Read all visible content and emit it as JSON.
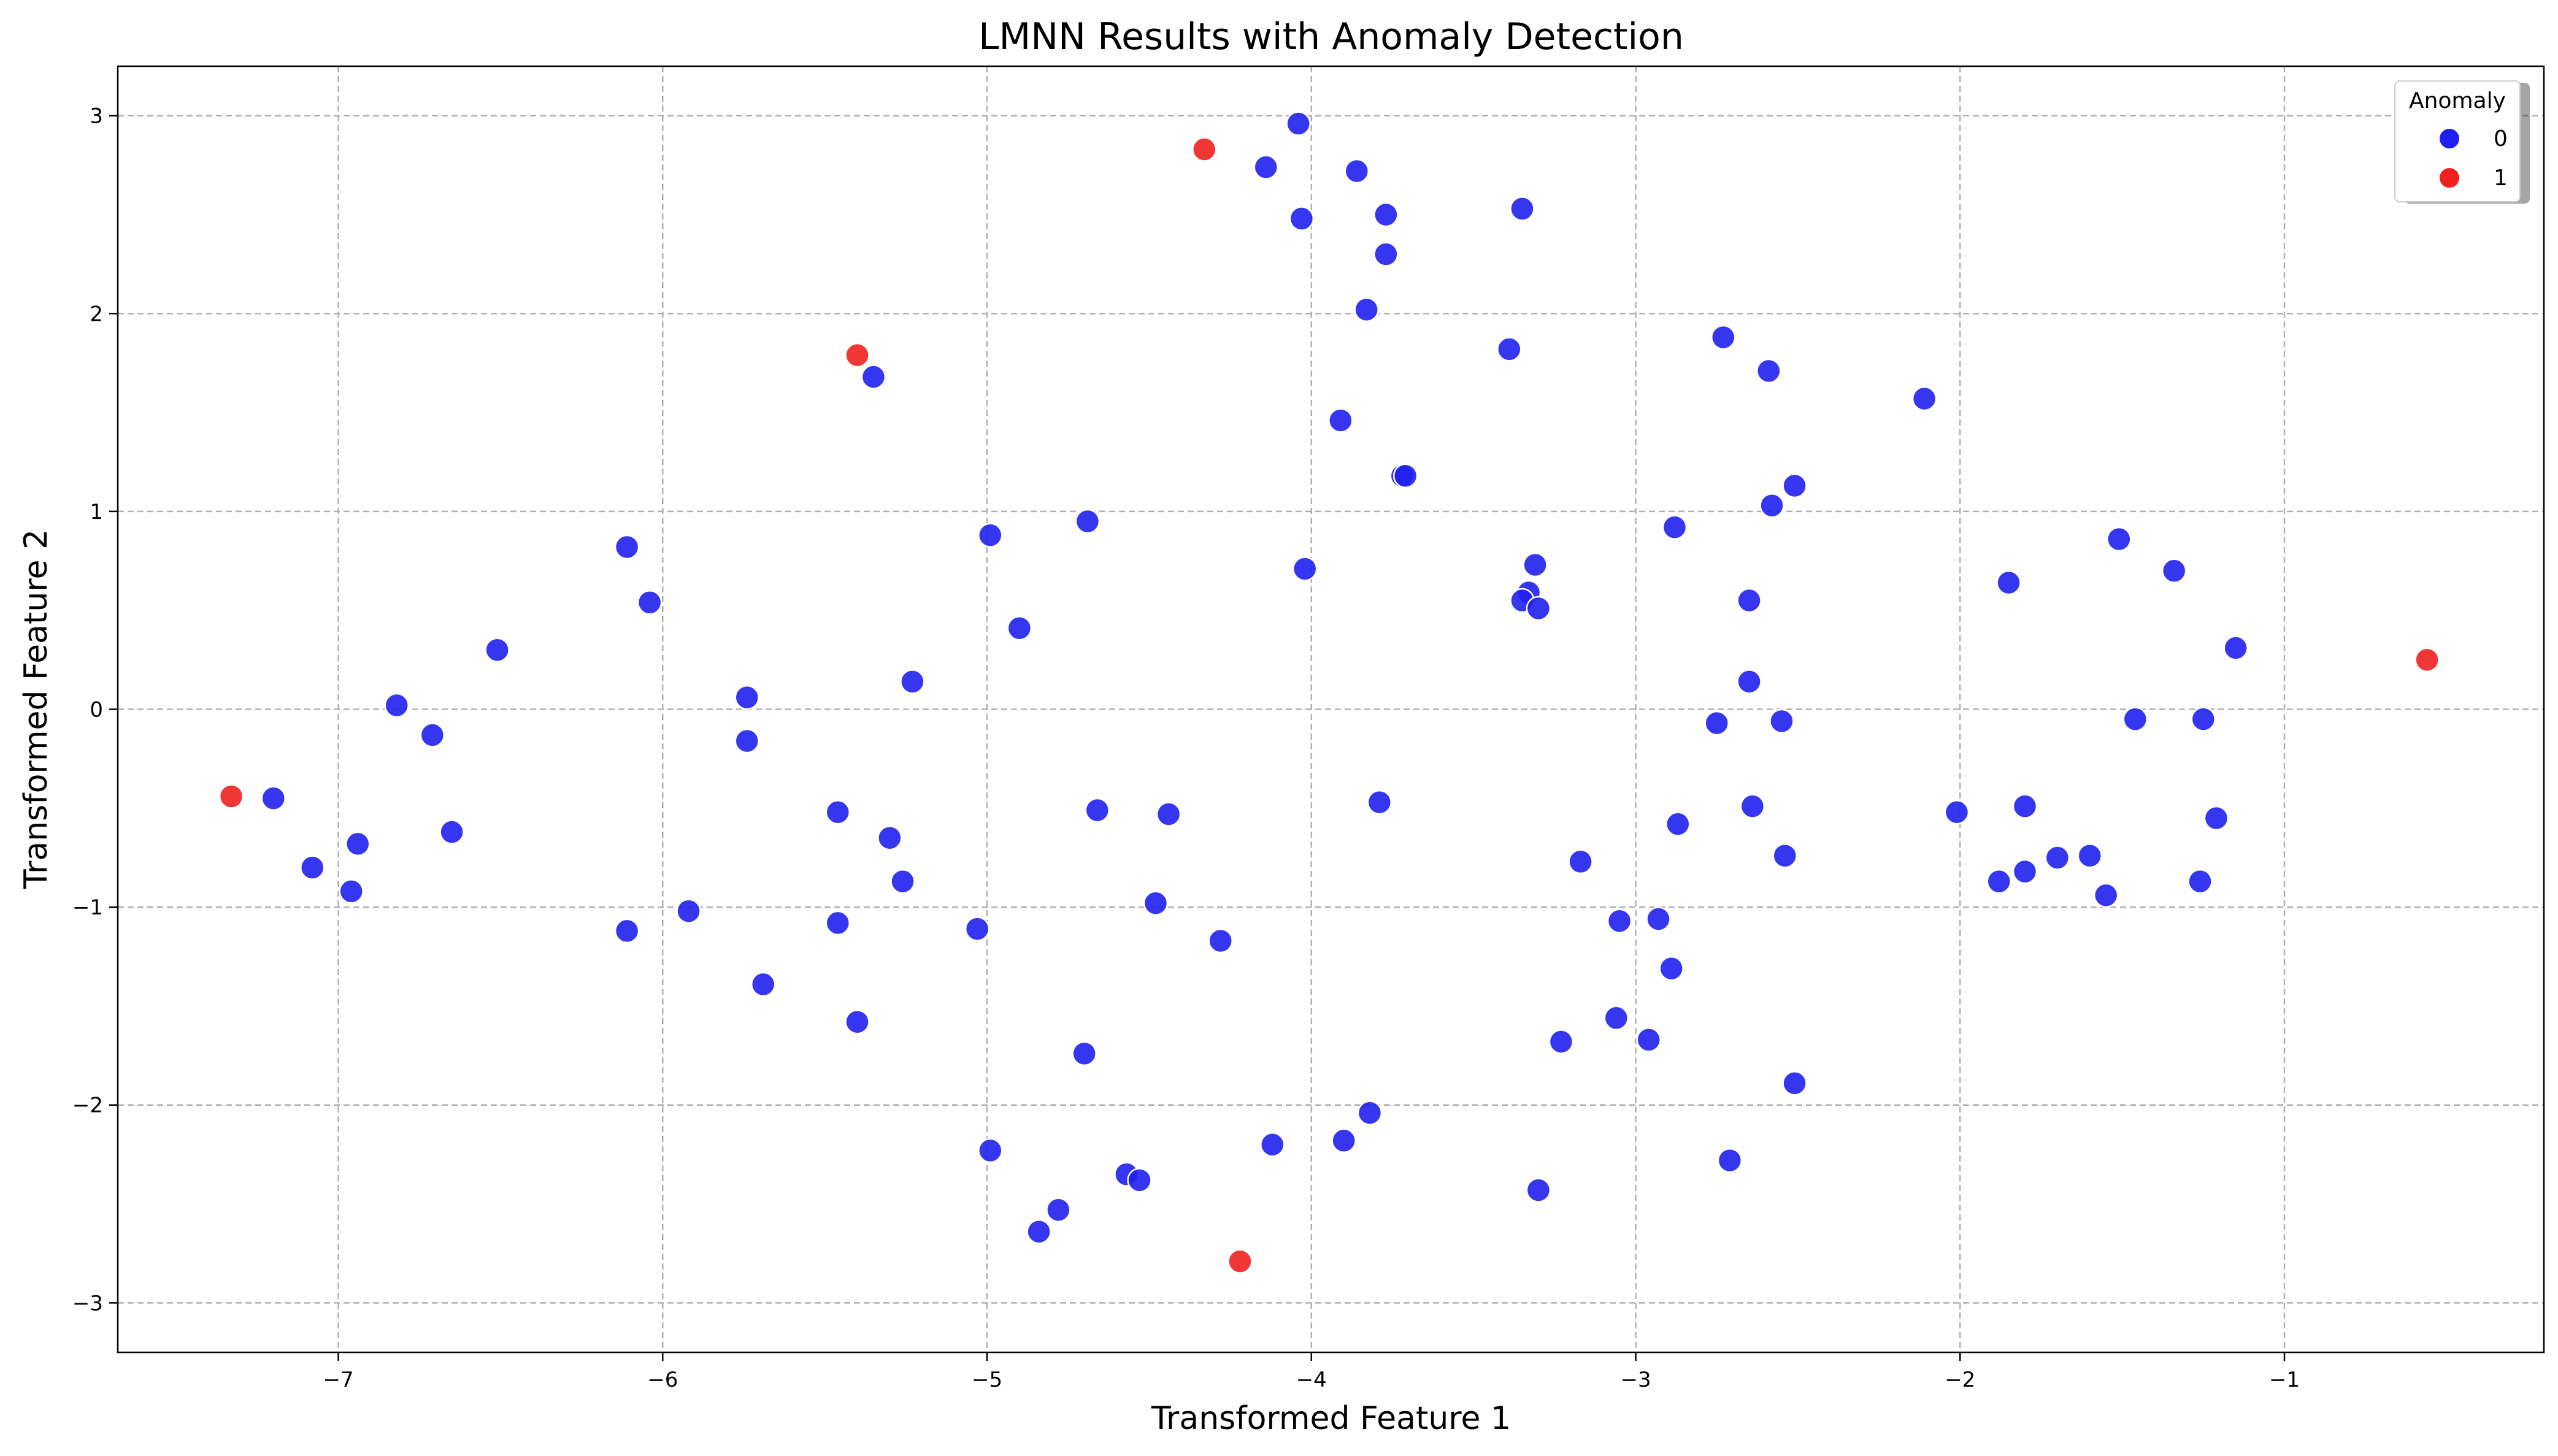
{
  "chart_data": {
    "type": "scatter",
    "title": "LMNN Results with Anomaly Detection",
    "xlabel": "Transformed Feature 1",
    "ylabel": "Transformed Feature 2",
    "xlim": [
      -7.68,
      -0.2
    ],
    "ylim": [
      -3.25,
      3.25
    ],
    "xticks": [
      -7,
      -6,
      -5,
      -4,
      -3,
      -2,
      -1
    ],
    "yticks": [
      -3,
      -2,
      -1,
      0,
      1,
      2,
      3
    ],
    "xtick_labels": [
      "−7",
      "−6",
      "−5",
      "−4",
      "−3",
      "−2",
      "−1"
    ],
    "ytick_labels": [
      "−3",
      "−2",
      "−1",
      "0",
      "1",
      "2",
      "3"
    ],
    "grid": true,
    "legend": {
      "title": "Anomaly",
      "position": "top-right"
    },
    "series": [
      {
        "name": "0",
        "color": "#2020f0",
        "points": [
          [
            -4.04,
            2.96
          ],
          [
            -4.14,
            2.74
          ],
          [
            -3.86,
            2.72
          ],
          [
            -4.03,
            2.48
          ],
          [
            -3.77,
            2.5
          ],
          [
            -3.35,
            2.53
          ],
          [
            -3.77,
            2.3
          ],
          [
            -3.83,
            2.02
          ],
          [
            -3.39,
            1.82
          ],
          [
            -2.73,
            1.88
          ],
          [
            -2.59,
            1.71
          ],
          [
            -2.11,
            1.57
          ],
          [
            -5.35,
            1.68
          ],
          [
            -3.91,
            1.46
          ],
          [
            -3.72,
            1.18
          ],
          [
            -3.71,
            1.18
          ],
          [
            -2.51,
            1.13
          ],
          [
            -2.58,
            1.03
          ],
          [
            -6.11,
            0.82
          ],
          [
            -4.99,
            0.88
          ],
          [
            -4.69,
            0.95
          ],
          [
            -4.02,
            0.71
          ],
          [
            -3.31,
            0.73
          ],
          [
            -3.33,
            0.59
          ],
          [
            -3.35,
            0.55
          ],
          [
            -3.3,
            0.51
          ],
          [
            -2.88,
            0.92
          ],
          [
            -2.65,
            0.55
          ],
          [
            -1.51,
            0.86
          ],
          [
            -1.34,
            0.7
          ],
          [
            -1.85,
            0.64
          ],
          [
            -1.15,
            0.31
          ],
          [
            -6.04,
            0.54
          ],
          [
            -6.51,
            0.3
          ],
          [
            -4.9,
            0.41
          ],
          [
            -5.74,
            0.06
          ],
          [
            -5.23,
            0.14
          ],
          [
            -6.82,
            0.02
          ],
          [
            -6.71,
            -0.13
          ],
          [
            -5.74,
            -0.16
          ],
          [
            -2.65,
            0.14
          ],
          [
            -2.75,
            -0.07
          ],
          [
            -2.55,
            -0.06
          ],
          [
            -1.46,
            -0.05
          ],
          [
            -1.25,
            -0.05
          ],
          [
            -7.2,
            -0.45
          ],
          [
            -6.65,
            -0.62
          ],
          [
            -6.94,
            -0.68
          ],
          [
            -7.08,
            -0.8
          ],
          [
            -6.96,
            -0.92
          ],
          [
            -5.46,
            -0.52
          ],
          [
            -5.3,
            -0.65
          ],
          [
            -5.26,
            -0.87
          ],
          [
            -4.66,
            -0.51
          ],
          [
            -4.44,
            -0.53
          ],
          [
            -3.79,
            -0.47
          ],
          [
            -2.64,
            -0.49
          ],
          [
            -2.87,
            -0.58
          ],
          [
            -2.54,
            -0.74
          ],
          [
            -3.17,
            -0.77
          ],
          [
            -2.01,
            -0.52
          ],
          [
            -1.8,
            -0.49
          ],
          [
            -1.21,
            -0.55
          ],
          [
            -1.88,
            -0.87
          ],
          [
            -1.8,
            -0.82
          ],
          [
            -1.7,
            -0.75
          ],
          [
            -1.6,
            -0.74
          ],
          [
            -1.55,
            -0.94
          ],
          [
            -1.26,
            -0.87
          ],
          [
            -6.11,
            -1.12
          ],
          [
            -5.92,
            -1.02
          ],
          [
            -5.46,
            -1.08
          ],
          [
            -5.03,
            -1.11
          ],
          [
            -4.48,
            -0.98
          ],
          [
            -4.28,
            -1.17
          ],
          [
            -3.05,
            -1.07
          ],
          [
            -2.93,
            -1.06
          ],
          [
            -2.89,
            -1.31
          ],
          [
            -5.69,
            -1.39
          ],
          [
            -5.4,
            -1.58
          ],
          [
            -4.7,
            -1.74
          ],
          [
            -3.23,
            -1.68
          ],
          [
            -3.06,
            -1.56
          ],
          [
            -2.96,
            -1.67
          ],
          [
            -2.51,
            -1.89
          ],
          [
            -3.82,
            -2.04
          ],
          [
            -4.12,
            -2.2
          ],
          [
            -3.9,
            -2.18
          ],
          [
            -4.99,
            -2.23
          ],
          [
            -4.57,
            -2.35
          ],
          [
            -4.53,
            -2.38
          ],
          [
            -4.78,
            -2.53
          ],
          [
            -4.84,
            -2.64
          ],
          [
            -3.3,
            -2.43
          ],
          [
            -2.71,
            -2.28
          ]
        ]
      },
      {
        "name": "1",
        "color": "#f02020",
        "points": [
          [
            -4.33,
            2.83
          ],
          [
            -5.4,
            1.79
          ],
          [
            -7.33,
            -0.44
          ],
          [
            -0.56,
            0.25
          ],
          [
            -4.22,
            -2.79
          ]
        ]
      }
    ]
  }
}
